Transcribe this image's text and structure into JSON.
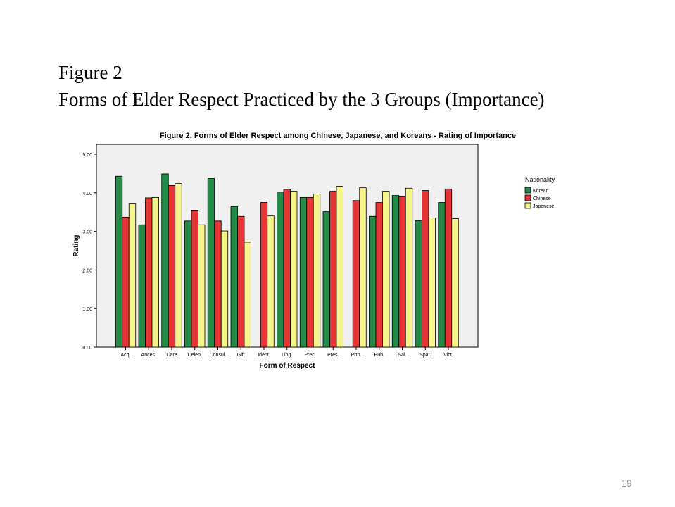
{
  "slide": {
    "heading": "Figure 2",
    "subheading": "Forms of Elder Respect Practiced by the 3 Groups (Importance)",
    "page_number": "19"
  },
  "chart_data": {
    "type": "bar",
    "title": "Figure 2. Forms of Elder Respect among Chinese, Japanese, and Koreans - Rating of Importance",
    "xlabel": "Form of Respect",
    "ylabel": "Rating",
    "ylim": [
      0,
      5
    ],
    "yticks": [
      "0.00",
      "1.00",
      "2.00",
      "3.00",
      "4.00",
      "5.00"
    ],
    "grid": false,
    "legend_title": "Nationality",
    "legend_position": "right",
    "categories": [
      "Acq.",
      "Ances.",
      "Care",
      "Celeb.",
      "Consul.",
      "Gift",
      "Ident.",
      "Ling.",
      "Prec.",
      "Pres.",
      "Prtn.",
      "Pub.",
      "Sal.",
      "Spat.",
      "Vict."
    ],
    "series": [
      {
        "name": "Korean",
        "color": "#238a48",
        "values": [
          4.43,
          3.17,
          4.49,
          3.27,
          4.37,
          3.64,
          null,
          4.02,
          3.88,
          3.51,
          null,
          3.39,
          3.93,
          3.28,
          3.75
        ]
      },
      {
        "name": "Chinese",
        "color": "#e53535",
        "values": [
          3.37,
          3.87,
          4.19,
          3.55,
          3.27,
          3.39,
          3.75,
          4.09,
          3.88,
          4.04,
          3.8,
          3.75,
          3.9,
          4.06,
          4.1
        ]
      },
      {
        "name": "Japanese",
        "color": "#f5f58c",
        "values": [
          3.73,
          3.88,
          4.24,
          3.17,
          3.01,
          2.72,
          3.4,
          4.04,
          3.97,
          4.17,
          4.13,
          4.04,
          4.12,
          3.35,
          3.33
        ]
      }
    ]
  }
}
